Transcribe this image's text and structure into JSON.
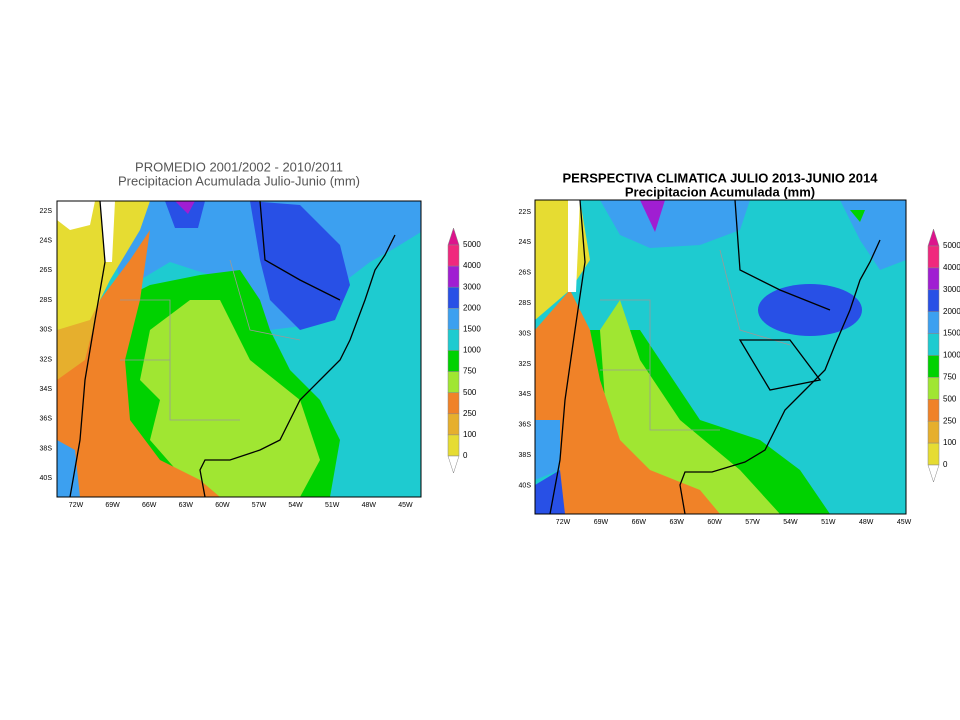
{
  "maps": [
    {
      "title": "PROMEDIO 2001/2002 - 2010/2011",
      "subtitle": "Precipitacion Acumulada Julio-Junio (mm)",
      "lat_labels": [
        "22S",
        "24S",
        "26S",
        "28S",
        "30S",
        "32S",
        "34S",
        "36S",
        "38S",
        "40S"
      ],
      "lon_labels": [
        "72W",
        "69W",
        "66W",
        "63W",
        "60W",
        "57W",
        "54W",
        "51W",
        "48W",
        "45W"
      ],
      "legend": [
        "5000",
        "4000",
        "3000",
        "2000",
        "1500",
        "1000",
        "750",
        "500",
        "250",
        "100",
        "0"
      ]
    },
    {
      "title": "PERSPECTIVA CLIMATICA JULIO 2013-JUNIO 2014",
      "subtitle": "Precipitacion Acumulada (mm)",
      "lat_labels": [
        "22S",
        "24S",
        "26S",
        "28S",
        "30S",
        "32S",
        "34S",
        "36S",
        "38S",
        "40S"
      ],
      "lon_labels": [
        "72W",
        "69W",
        "66W",
        "63W",
        "60W",
        "57W",
        "54W",
        "51W",
        "48W",
        "45W"
      ],
      "legend": [
        "5000",
        "4000",
        "3000",
        "2000",
        "1500",
        "1000",
        "750",
        "500",
        "250",
        "100",
        "0"
      ]
    }
  ],
  "legend_colors": [
    "#dc148c",
    "#f0287d",
    "#a01ed2",
    "#2850e6",
    "#3ca0f0",
    "#1ecbd0",
    "#00d200",
    "#a0e632",
    "#f08228",
    "#e6af2d",
    "#e6dc32",
    "#ffffff"
  ]
}
